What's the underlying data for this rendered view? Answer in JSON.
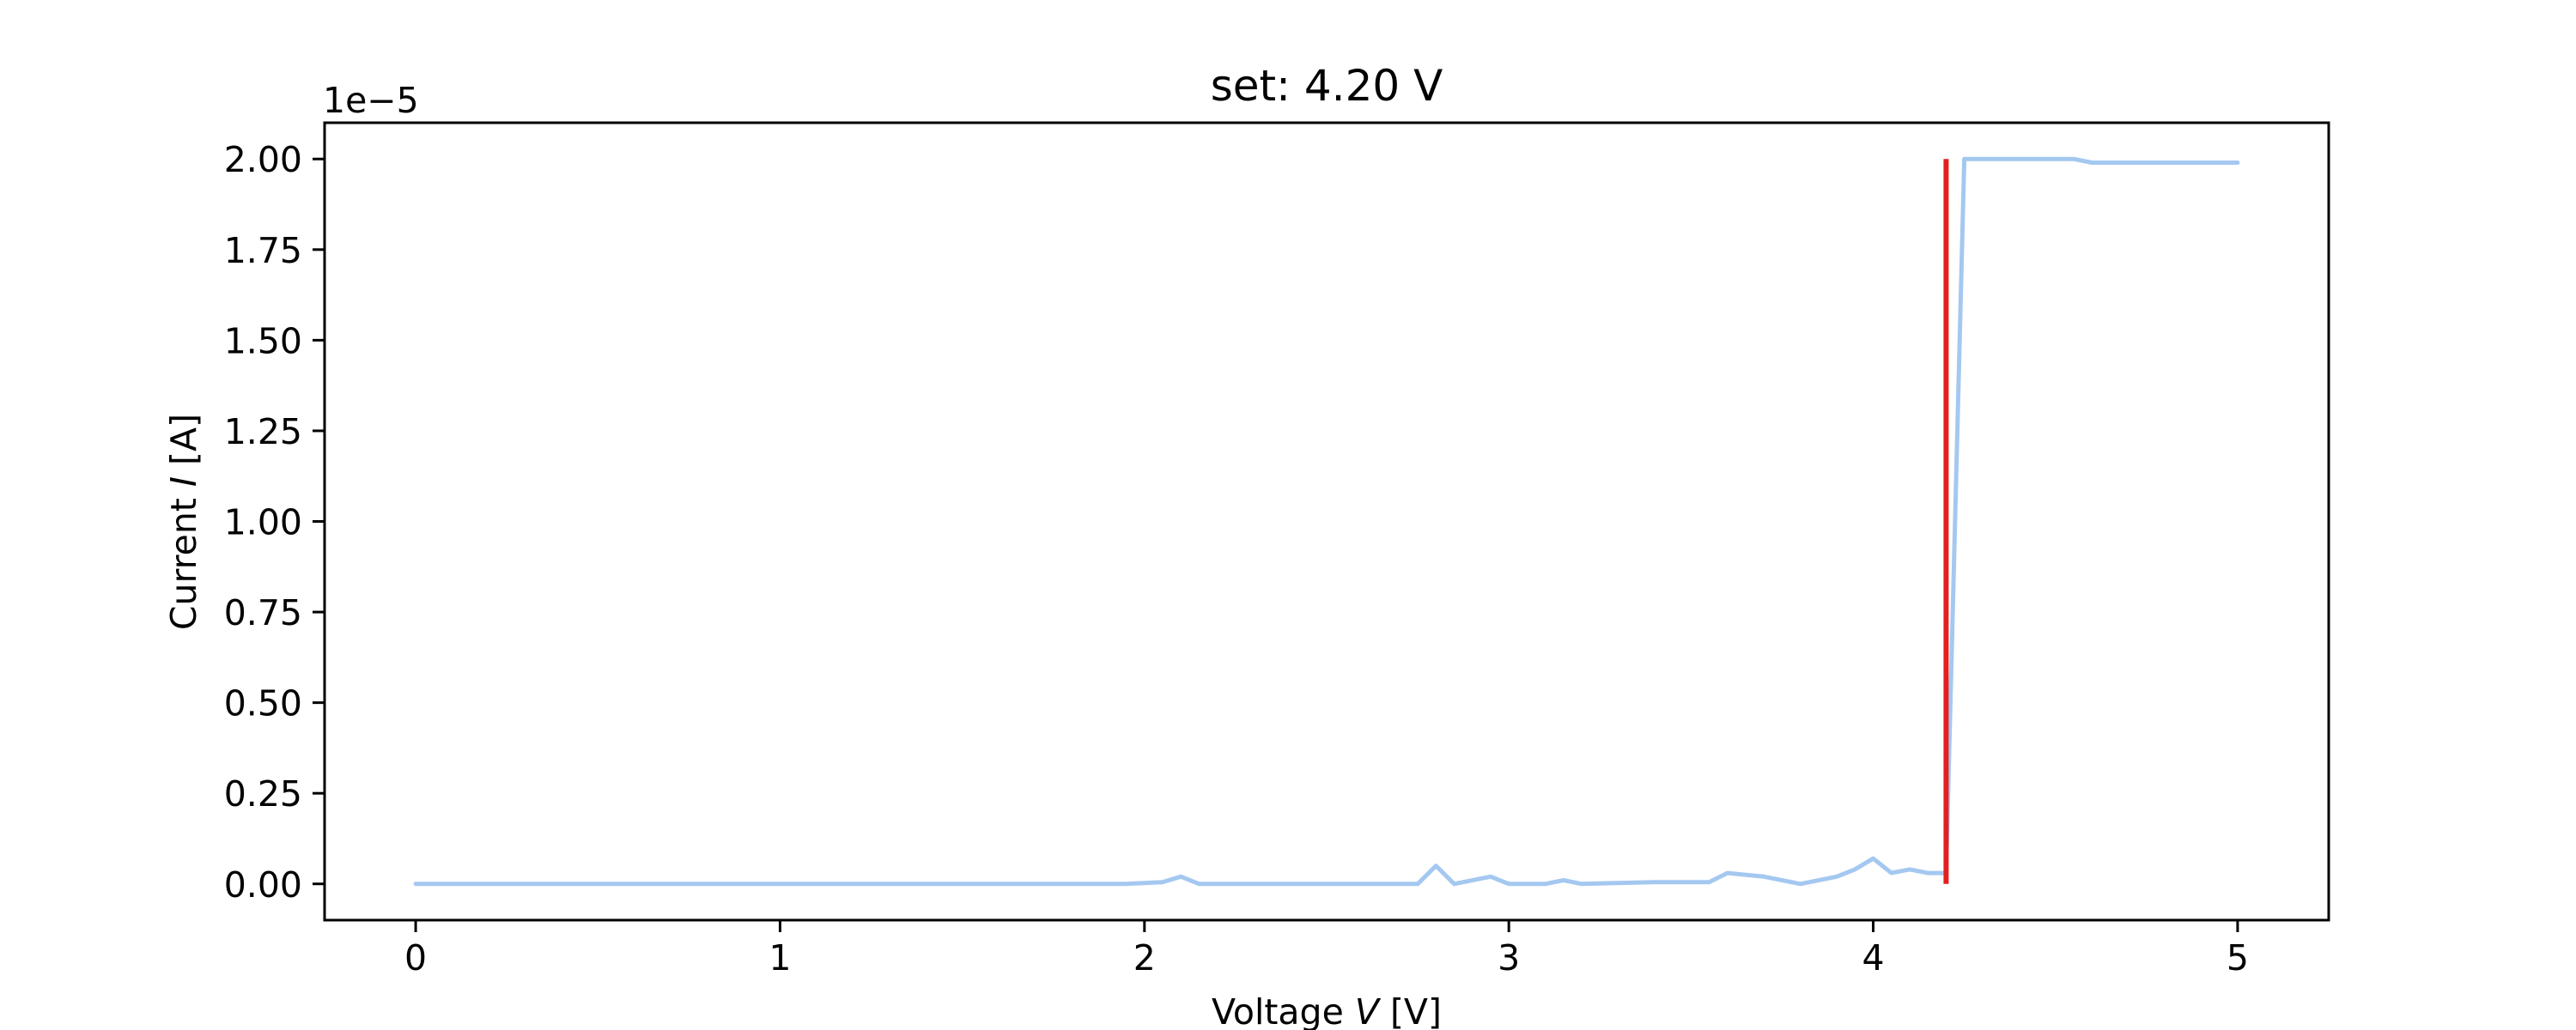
{
  "chart_data": {
    "type": "line",
    "title": "set: 4.20 V",
    "xlabel": {
      "pre": "Voltage ",
      "var": "V",
      "post": " [V]"
    },
    "ylabel": {
      "pre": "Current ",
      "var": "I",
      "post": " [A]"
    },
    "y_offset_text": "1e−5",
    "xlim": [
      -0.25,
      5.25
    ],
    "ylim": [
      -0.1,
      2.1
    ],
    "x_ticks": [
      0,
      1,
      2,
      3,
      4,
      5
    ],
    "x_tick_labels": [
      "0",
      "1",
      "2",
      "3",
      "4",
      "5"
    ],
    "y_ticks": [
      0.0,
      0.25,
      0.5,
      0.75,
      1.0,
      1.25,
      1.5,
      1.75,
      2.0
    ],
    "y_tick_labels": [
      "0.00",
      "0.25",
      "0.50",
      "0.75",
      "1.00",
      "1.25",
      "1.50",
      "1.75",
      "2.00"
    ],
    "grid": false,
    "series": [
      {
        "color": "#a4c8f0",
        "x": [
          0,
          0.5,
          1.0,
          1.5,
          1.95,
          2.05,
          2.1,
          2.15,
          2.5,
          2.75,
          2.8,
          2.85,
          2.95,
          3.0,
          3.1,
          3.15,
          3.2,
          3.4,
          3.55,
          3.6,
          3.7,
          3.8,
          3.9,
          3.95,
          4.0,
          4.05,
          4.1,
          4.15,
          4.2,
          4.25,
          4.55,
          4.6,
          5.0
        ],
        "y": [
          0,
          0,
          0,
          0,
          0,
          0.005,
          0.02,
          0,
          0,
          0,
          0.05,
          0,
          0.02,
          0,
          0,
          0.01,
          0,
          0.005,
          0.005,
          0.03,
          0.02,
          0,
          0.02,
          0.04,
          0.07,
          0.03,
          0.04,
          0.03,
          0.03,
          2.0,
          2.0,
          1.99,
          1.99
        ]
      }
    ],
    "threshold_line": {
      "color": "#e3201f",
      "x": 4.2,
      "y_range": [
        0.0,
        2.0
      ]
    }
  }
}
